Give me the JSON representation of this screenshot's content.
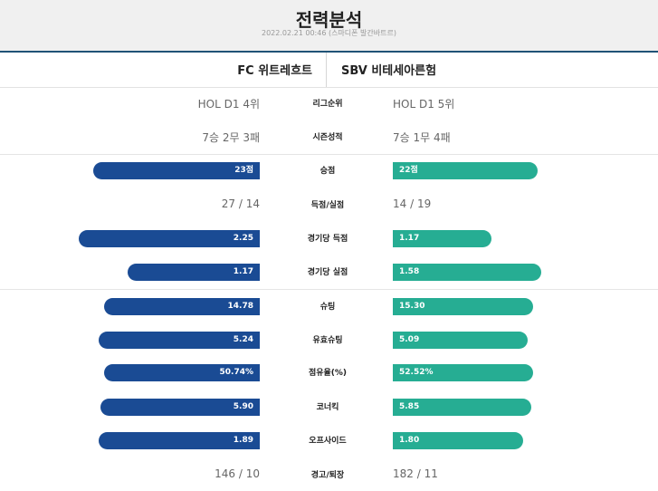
{
  "header": {
    "title": "전력분석",
    "subtitle": "2022.02.21 00:46 (스마디폰 발간바트르)"
  },
  "teams": {
    "home": "FC 위트레흐트",
    "away": "SBV 비테세아른험"
  },
  "colors": {
    "home_bar": "#1a4b94",
    "away_bar": "#26ad93",
    "header_bg": "#f0f0f0",
    "team_border": "#1f5276"
  },
  "stats": [
    {
      "label": "리그순위",
      "kind": "text",
      "home": "HOL D1 4위",
      "away": "HOL D1 5위"
    },
    {
      "label": "시즌성적",
      "kind": "text",
      "home": "7승 2무 3패",
      "away": "7승 1무 4패"
    },
    {
      "label": "승점",
      "kind": "bar",
      "home": "23점",
      "away": "22점",
      "home_fill": 0.92,
      "away_fill": 0.88
    },
    {
      "label": "득점/실점",
      "kind": "text",
      "home": "27 / 14",
      "away": "14 / 19"
    },
    {
      "label": "경기당 득점",
      "kind": "bar",
      "home": "2.25",
      "away": "1.17",
      "home_fill": 1.0,
      "away_fill": 0.6
    },
    {
      "label": "경기당 실점",
      "kind": "bar",
      "home": "1.17",
      "away": "1.58",
      "home_fill": 0.73,
      "away_fill": 0.9
    },
    {
      "label": "슈팅",
      "kind": "bar",
      "home": "14.78",
      "away": "15.30",
      "home_fill": 0.86,
      "away_fill": 0.85
    },
    {
      "label": "유효슈팅",
      "kind": "bar",
      "home": "5.24",
      "away": "5.09",
      "home_fill": 0.89,
      "away_fill": 0.82
    },
    {
      "label": "점유율(%)",
      "kind": "bar",
      "home": "50.74%",
      "away": "52.52%",
      "home_fill": 0.86,
      "away_fill": 0.85
    },
    {
      "label": "코너킥",
      "kind": "bar",
      "home": "5.90",
      "away": "5.85",
      "home_fill": 0.88,
      "away_fill": 0.84
    },
    {
      "label": "오프사이드",
      "kind": "bar",
      "home": "1.89",
      "away": "1.80",
      "home_fill": 0.89,
      "away_fill": 0.79
    },
    {
      "label": "경고/퇴장",
      "kind": "text",
      "home": "146 / 10",
      "away": "182 / 11"
    }
  ]
}
